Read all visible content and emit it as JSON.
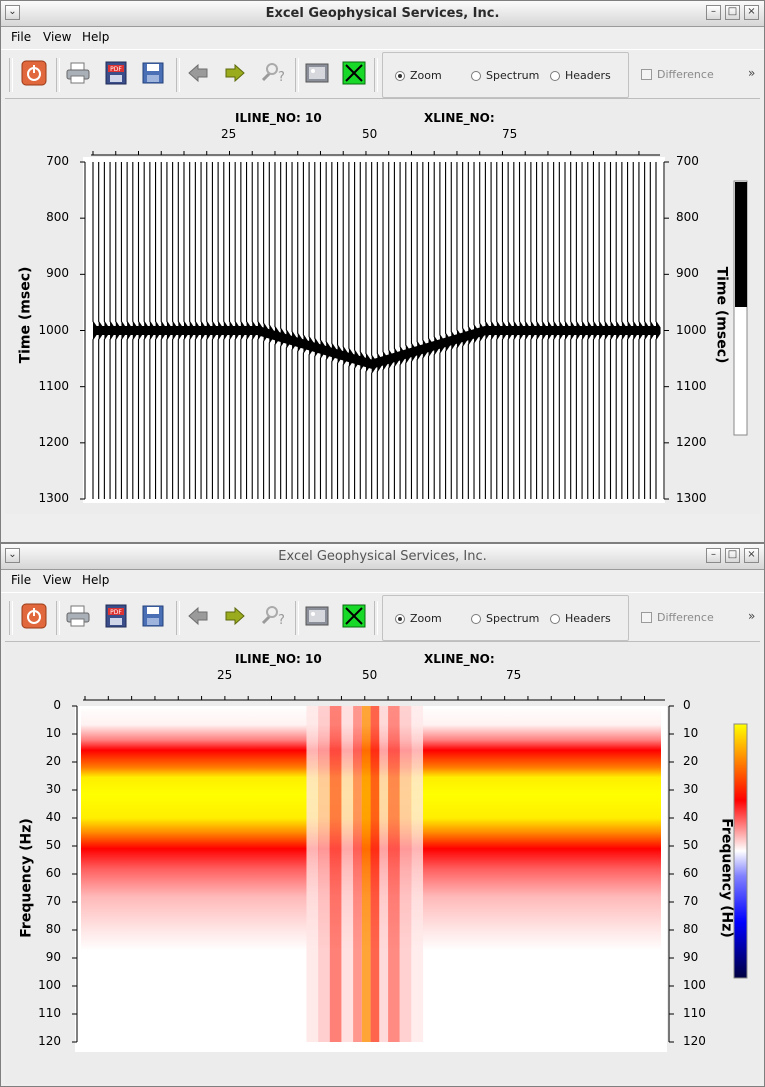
{
  "app_title": "Excel Geophysical Services, Inc.",
  "menu": {
    "file": "File",
    "view": "View",
    "help": "Help"
  },
  "toolbar": {
    "icons": [
      "power-icon",
      "printer-icon",
      "pdf-icon",
      "save-icon",
      "back-arrow-icon",
      "forward-arrow-icon",
      "help-icon",
      "image-icon",
      "close-x-icon"
    ],
    "modes": [
      "Zoom",
      "Spectrum",
      "Headers"
    ],
    "selected_mode": "Zoom",
    "difference": "Difference",
    "more": "»"
  },
  "header": {
    "iline": "ILINE_NO: 10",
    "xline": "XLINE_NO:"
  },
  "top_plot": {
    "x_ticks": [
      "25",
      "50",
      "75"
    ],
    "y_ticks": [
      "700",
      "800",
      "900",
      "1000",
      "1100",
      "1200",
      "1300"
    ],
    "ylabel": "Time (msec)",
    "colors": {
      "trace": "#000000",
      "background": "#ffffff",
      "bar_top": "#000000",
      "bar_bottom": "#ffffff"
    }
  },
  "bottom_plot": {
    "x_ticks": [
      "25",
      "50",
      "75"
    ],
    "y_ticks": [
      "0",
      "10",
      "20",
      "30",
      "40",
      "50",
      "60",
      "70",
      "80",
      "90",
      "100",
      "110",
      "120"
    ],
    "ylabel": "Frequency (Hz)",
    "colors": {
      "high": "#ffff00",
      "mid": "#ff0000",
      "low": "#ffffff",
      "negative": "#0000ff",
      "min": "#000040"
    }
  },
  "chart_data": [
    {
      "type": "line",
      "title": "ILINE_NO: 10",
      "xlabel": "",
      "ylabel": "Time (msec)",
      "xlim": [
        1,
        100
      ],
      "ylim": [
        700,
        1300
      ],
      "y_inverted": true,
      "series": [
        {
          "x": [
            1,
            30,
            50,
            70,
            100
          ],
          "y": [
            1000,
            1000,
            1060,
            1000,
            1000
          ]
        }
      ]
    },
    {
      "type": "heatmap",
      "title": "ILINE_NO: 10",
      "xlabel": "",
      "ylabel": "Frequency (Hz)",
      "xlim": [
        1,
        100
      ],
      "ylim": [
        0,
        120
      ],
      "y_inverted": true
    }
  ]
}
